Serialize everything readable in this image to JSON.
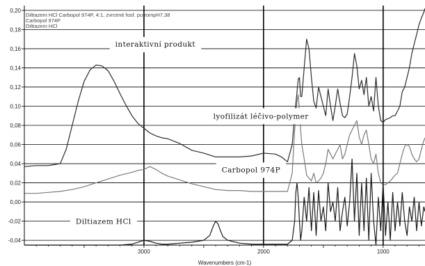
{
  "chart_data": {
    "type": "line",
    "title": "",
    "xlabel": "Wavenumbers (cm-1)",
    "ylabel": "",
    "x_reversed": true,
    "xlim": [
      4000,
      650
    ],
    "ylim": [
      -0.045,
      0.205
    ],
    "xticks": [
      3000,
      2000,
      1000
    ],
    "yticks": [
      -0.04,
      -0.02,
      0.0,
      0.02,
      0.04,
      0.06,
      0.08,
      0.1,
      0.12,
      0.14,
      0.16,
      0.18,
      0.2
    ],
    "ytick_labels": [
      "-0,04",
      "-0,02",
      "0,00",
      "0,02",
      "0,04",
      "0,06",
      "0,08",
      "0,10",
      "0,12",
      "0,14",
      "0,16",
      "0,18",
      "0,20"
    ],
    "grid": true,
    "legend": {
      "placement": "top-left",
      "entries": [
        "Diltiazem HCl Carbopol 974P, 4:1, zvrcené fosf. pufrompH7,38",
        "Carbopol 974P",
        "Diltiazem HCl"
      ]
    },
    "annotations": [
      {
        "text": "interaktivní produkt",
        "x": 3240,
        "y": 0.162
      },
      {
        "text": "lyofilizát léčivo-polymer",
        "x": 2420,
        "y": 0.087
      },
      {
        "text": "Carbopol 974P",
        "x": 2350,
        "y": 0.031
      },
      {
        "text": "Diltiazem HCl",
        "x": 3570,
        "y": -0.023
      }
    ],
    "series": [
      {
        "name": "Diltiazem HCl Carbopol 974P, 4:1, zvrcené fosf. pufrompH7,38",
        "color": "#2b2b2b",
        "x": [
          4000,
          3900,
          3800,
          3700,
          3650,
          3600,
          3550,
          3500,
          3450,
          3400,
          3350,
          3300,
          3250,
          3200,
          3150,
          3100,
          3050,
          3000,
          2950,
          2900,
          2850,
          2800,
          2700,
          2600,
          2500,
          2400,
          2300,
          2200,
          2100,
          2000,
          1900,
          1850,
          1800,
          1760,
          1740,
          1720,
          1710,
          1700,
          1690,
          1680,
          1660,
          1640,
          1620,
          1600,
          1580,
          1560,
          1540,
          1520,
          1500,
          1480,
          1460,
          1440,
          1420,
          1400,
          1380,
          1360,
          1340,
          1320,
          1300,
          1280,
          1260,
          1240,
          1220,
          1200,
          1180,
          1160,
          1140,
          1120,
          1100,
          1080,
          1060,
          1040,
          1020,
          1000,
          980,
          960,
          940,
          920,
          900,
          880,
          860,
          840,
          820,
          800,
          780,
          760,
          740,
          720,
          700,
          680,
          660,
          650
        ],
        "y": [
          0.037,
          0.038,
          0.038,
          0.04,
          0.055,
          0.08,
          0.105,
          0.126,
          0.138,
          0.143,
          0.142,
          0.137,
          0.126,
          0.113,
          0.101,
          0.09,
          0.082,
          0.077,
          0.072,
          0.069,
          0.067,
          0.066,
          0.061,
          0.054,
          0.051,
          0.047,
          0.047,
          0.047,
          0.048,
          0.051,
          0.05,
          0.047,
          0.042,
          0.06,
          0.09,
          0.115,
          0.128,
          0.13,
          0.11,
          0.11,
          0.14,
          0.17,
          0.16,
          0.13,
          0.105,
          0.098,
          0.12,
          0.11,
          0.1,
          0.09,
          0.118,
          0.1,
          0.085,
          0.1,
          0.118,
          0.103,
          0.09,
          0.088,
          0.092,
          0.11,
          0.13,
          0.155,
          0.142,
          0.118,
          0.127,
          0.112,
          0.13,
          0.1,
          0.11,
          0.095,
          0.13,
          0.1,
          0.085,
          0.083,
          0.086,
          0.087,
          0.088,
          0.09,
          0.09,
          0.095,
          0.1,
          0.115,
          0.12,
          0.13,
          0.14,
          0.155,
          0.165,
          0.175,
          0.185,
          0.192,
          0.198,
          0.202
        ]
      },
      {
        "name": "Carbopol 974P",
        "color": "#7a7a7a",
        "x": [
          4000,
          3900,
          3800,
          3700,
          3600,
          3500,
          3400,
          3300,
          3200,
          3100,
          3050,
          3000,
          2950,
          2900,
          2850,
          2800,
          2700,
          2600,
          2500,
          2400,
          2300,
          2200,
          2100,
          2000,
          1900,
          1850,
          1800,
          1760,
          1740,
          1720,
          1710,
          1700,
          1690,
          1680,
          1660,
          1640,
          1620,
          1600,
          1580,
          1560,
          1540,
          1520,
          1500,
          1480,
          1460,
          1440,
          1420,
          1400,
          1380,
          1360,
          1340,
          1320,
          1300,
          1280,
          1260,
          1240,
          1220,
          1200,
          1180,
          1160,
          1140,
          1120,
          1100,
          1080,
          1060,
          1040,
          1020,
          1000,
          980,
          960,
          940,
          920,
          900,
          880,
          860,
          840,
          820,
          800,
          780,
          760,
          740,
          720,
          700,
          680,
          660,
          650
        ],
        "y": [
          0.009,
          0.009,
          0.01,
          0.011,
          0.013,
          0.016,
          0.02,
          0.024,
          0.028,
          0.031,
          0.033,
          0.034,
          0.037,
          0.034,
          0.03,
          0.027,
          0.023,
          0.019,
          0.016,
          0.013,
          0.012,
          0.012,
          0.011,
          0.011,
          0.011,
          0.011,
          0.011,
          0.03,
          0.075,
          0.105,
          0.112,
          0.096,
          0.075,
          0.06,
          0.045,
          0.028,
          0.025,
          0.022,
          0.03,
          0.02,
          0.022,
          0.025,
          0.03,
          0.04,
          0.055,
          0.05,
          0.045,
          0.05,
          0.055,
          0.06,
          0.045,
          0.05,
          0.06,
          0.07,
          0.075,
          0.08,
          0.085,
          0.068,
          0.06,
          0.07,
          0.075,
          0.06,
          0.045,
          0.04,
          0.05,
          0.03,
          0.02,
          0.018,
          0.018,
          0.02,
          0.022,
          0.025,
          0.028,
          0.03,
          0.04,
          0.05,
          0.058,
          0.06,
          0.058,
          0.05,
          0.045,
          0.042,
          0.045,
          0.055,
          0.064,
          0.067
        ]
      },
      {
        "name": "Diltiazem HCl",
        "color": "#1a1a1a",
        "x": [
          4000,
          3900,
          3800,
          3700,
          3600,
          3500,
          3400,
          3300,
          3200,
          3100,
          3050,
          3000,
          2950,
          2900,
          2850,
          2800,
          2700,
          2600,
          2500,
          2450,
          2420,
          2400,
          2380,
          2360,
          2340,
          2300,
          2200,
          2100,
          2000,
          1900,
          1850,
          1800,
          1760,
          1740,
          1730,
          1720,
          1710,
          1700,
          1690,
          1680,
          1660,
          1640,
          1620,
          1600,
          1580,
          1560,
          1540,
          1520,
          1500,
          1480,
          1460,
          1440,
          1420,
          1400,
          1380,
          1360,
          1340,
          1320,
          1300,
          1280,
          1260,
          1240,
          1220,
          1200,
          1180,
          1160,
          1140,
          1120,
          1100,
          1080,
          1060,
          1040,
          1020,
          1000,
          980,
          960,
          940,
          920,
          900,
          880,
          860,
          840,
          820,
          800,
          780,
          760,
          740,
          720,
          700,
          680,
          660,
          650
        ],
        "y": [
          -0.045,
          -0.045,
          -0.045,
          -0.045,
          -0.045,
          -0.045,
          -0.045,
          -0.045,
          -0.045,
          -0.044,
          -0.042,
          -0.04,
          -0.041,
          -0.043,
          -0.044,
          -0.044,
          -0.043,
          -0.042,
          -0.04,
          -0.035,
          -0.025,
          -0.02,
          -0.023,
          -0.03,
          -0.036,
          -0.04,
          -0.043,
          -0.044,
          -0.044,
          -0.044,
          -0.044,
          -0.044,
          -0.04,
          -0.02,
          0.01,
          0.02,
          0.005,
          -0.02,
          -0.04,
          -0.03,
          0.005,
          -0.02,
          0.015,
          -0.03,
          0.01,
          -0.035,
          0.012,
          -0.02,
          -0.005,
          -0.03,
          0.02,
          -0.01,
          0.0,
          -0.02,
          0.015,
          -0.03,
          -0.01,
          0.005,
          -0.025,
          0.0,
          0.045,
          -0.02,
          0.03,
          -0.035,
          0.02,
          -0.03,
          0.025,
          -0.04,
          0.03,
          -0.02,
          -0.045,
          0.005,
          -0.03,
          0.02,
          -0.035,
          0.0,
          -0.04,
          0.01,
          -0.03,
          0.0,
          -0.025,
          0.01,
          -0.02,
          -0.035,
          -0.005,
          -0.02,
          0.005,
          -0.03,
          0.0,
          -0.025,
          -0.005,
          -0.01
        ]
      }
    ]
  }
}
